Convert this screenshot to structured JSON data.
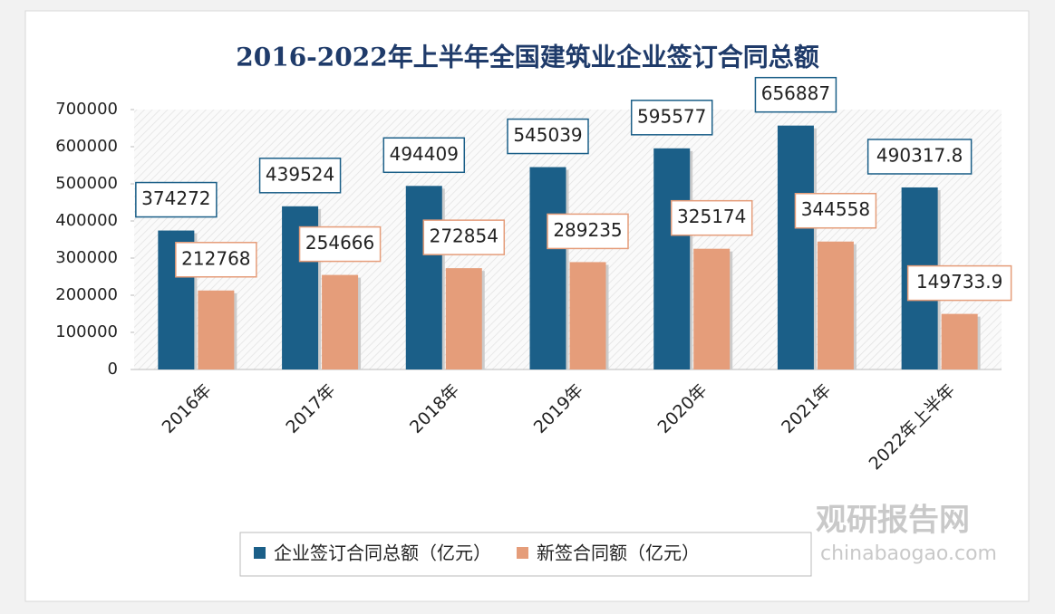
{
  "chart_data": {
    "type": "bar",
    "title": "2016-2022年上半年全国建筑业企业签订合同总额",
    "categories": [
      "2016年",
      "2017年",
      "2018年",
      "2019年",
      "2020年",
      "2021年",
      "2022年上半年"
    ],
    "series": [
      {
        "name": "企业签订合同总额（亿元）",
        "color": "#1b5f88",
        "values": [
          374272,
          439524,
          494409,
          545039,
          595577,
          656887,
          490317.8
        ]
      },
      {
        "name": "新签合同额（亿元）",
        "color": "#e59d7a",
        "values": [
          212768,
          254666,
          272854,
          289235,
          325174,
          344558,
          149733.9
        ]
      }
    ],
    "ylim": [
      0,
      700000
    ],
    "yticks": [
      0,
      100000,
      200000,
      300000,
      400000,
      500000,
      600000,
      700000
    ],
    "legend": "bottom",
    "watermark": {
      "name": "观研报告网",
      "url": "chinabaogao.com"
    }
  }
}
